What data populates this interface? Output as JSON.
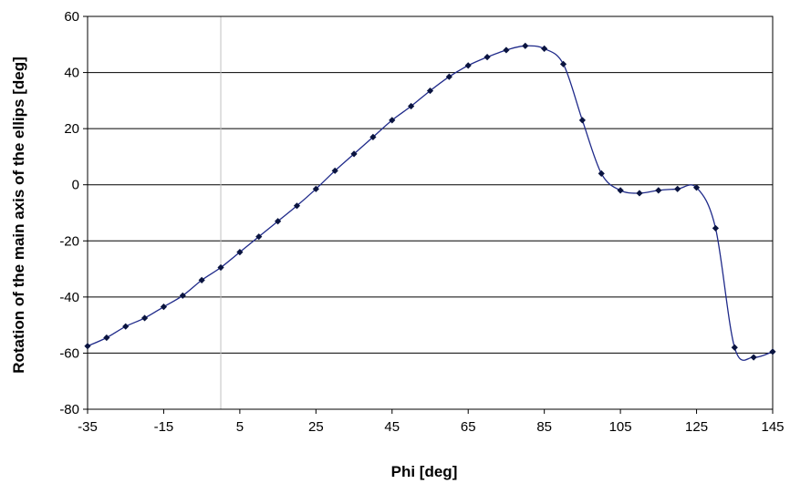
{
  "chart_data": {
    "type": "line",
    "title": "",
    "xlabel": "Phi [deg]",
    "ylabel": "Rotation of the main axis of the ellips [deg]",
    "xlim": [
      -35,
      145
    ],
    "ylim": [
      -80,
      60
    ],
    "x_ticks": [
      -35,
      -15,
      5,
      25,
      45,
      65,
      85,
      105,
      125,
      145
    ],
    "y_ticks": [
      -80,
      -60,
      -40,
      -20,
      0,
      20,
      40,
      60
    ],
    "grid": {
      "horizontal": true,
      "vertical_reference_x": 0
    },
    "marker": "diamond",
    "line_style": "smooth",
    "colors": {
      "line": "#1f2a8a",
      "marker": "#0a1440",
      "grid": "#000000",
      "reference_line": "#c0c0c0"
    },
    "series": [
      {
        "x": [
          -35,
          -30,
          -25,
          -20,
          -15,
          -10,
          -5,
          0,
          5,
          10,
          15,
          20,
          25,
          30,
          35,
          40,
          45,
          50,
          55,
          60,
          65,
          70,
          75,
          80,
          85,
          90,
          95,
          100,
          105,
          110,
          115,
          120,
          125,
          130,
          135,
          140,
          145
        ],
        "y": [
          -57.5,
          -54.5,
          -50.5,
          -47.5,
          -43.5,
          -39.5,
          -34,
          -29.5,
          -24,
          -18.5,
          -13,
          -7.5,
          -1.5,
          5,
          11,
          17,
          23,
          28,
          33.5,
          38.5,
          42.5,
          45.5,
          48,
          49.5,
          48.5,
          43,
          23,
          4,
          -2,
          -3,
          -2,
          -1.5,
          -1,
          -15.5,
          -58,
          -61.5,
          -59.5
        ]
      }
    ]
  }
}
